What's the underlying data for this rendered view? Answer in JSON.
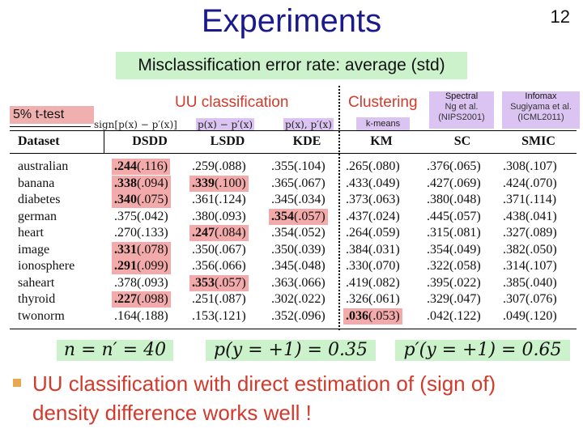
{
  "title": "Experiments",
  "page_number": "12",
  "subtitle": "Misclassification error rate: average (std)",
  "ttest_label": "5% t-test",
  "groups": {
    "uu": "UU classification",
    "clustering": "Clustering"
  },
  "method_notes": {
    "spectral": {
      "name": "Spectral",
      "line1": "Ng et al.",
      "line2": "(NIPS2001)"
    },
    "infomax": {
      "name": "Infomax",
      "line1": "Sugiyama et al.",
      "line2": "(ICML2011)"
    }
  },
  "formulas": {
    "dsdd": "sign[p(x) − p′(x)]",
    "lsdd": "p(x) − p′(x)",
    "kde": "p(x), p′(x)",
    "km": "k-means"
  },
  "table": {
    "headers": [
      "Dataset",
      "DSDD",
      "LSDD",
      "KDE",
      "KM",
      "SC",
      "SMIC"
    ],
    "rows": [
      {
        "dataset": "australian",
        "cells": [
          {
            "avg": ".244",
            "std": "(.116)",
            "hl": true
          },
          {
            "avg": ".259",
            "std": "(.088)",
            "hl": false
          },
          {
            "avg": ".355",
            "std": "(.104)",
            "hl": false
          },
          {
            "avg": ".265",
            "std": "(.080)",
            "hl": false
          },
          {
            "avg": ".376",
            "std": "(.065)",
            "hl": false
          },
          {
            "avg": ".308",
            "std": "(.107)",
            "hl": false
          }
        ]
      },
      {
        "dataset": "banana",
        "cells": [
          {
            "avg": ".338",
            "std": "(.094)",
            "hl": true
          },
          {
            "avg": ".339",
            "std": "(.100)",
            "hl": true
          },
          {
            "avg": ".365",
            "std": "(.067)",
            "hl": false
          },
          {
            "avg": ".433",
            "std": "(.049)",
            "hl": false
          },
          {
            "avg": ".427",
            "std": "(.069)",
            "hl": false
          },
          {
            "avg": ".424",
            "std": "(.070)",
            "hl": false
          }
        ]
      },
      {
        "dataset": "diabetes",
        "cells": [
          {
            "avg": ".340",
            "std": "(.075)",
            "hl": true
          },
          {
            "avg": ".361",
            "std": "(.124)",
            "hl": false
          },
          {
            "avg": ".345",
            "std": "(.034)",
            "hl": false
          },
          {
            "avg": ".373",
            "std": "(.063)",
            "hl": false
          },
          {
            "avg": ".380",
            "std": "(.048)",
            "hl": false
          },
          {
            "avg": ".371",
            "std": "(.114)",
            "hl": false
          }
        ]
      },
      {
        "dataset": "german",
        "cells": [
          {
            "avg": ".375",
            "std": "(.042)",
            "hl": false
          },
          {
            "avg": ".380",
            "std": "(.093)",
            "hl": false
          },
          {
            "avg": ".354",
            "std": "(.057)",
            "hl": true
          },
          {
            "avg": ".437",
            "std": "(.024)",
            "hl": false
          },
          {
            "avg": ".445",
            "std": "(.057)",
            "hl": false
          },
          {
            "avg": ".438",
            "std": "(.041)",
            "hl": false
          }
        ]
      },
      {
        "dataset": "heart",
        "cells": [
          {
            "avg": ".270",
            "std": "(.133)",
            "hl": false
          },
          {
            "avg": ".247",
            "std": "(.084)",
            "hl": true
          },
          {
            "avg": ".354",
            "std": "(.052)",
            "hl": false
          },
          {
            "avg": ".264",
            "std": "(.059)",
            "hl": false
          },
          {
            "avg": ".315",
            "std": "(.081)",
            "hl": false
          },
          {
            "avg": ".327",
            "std": "(.089)",
            "hl": false
          }
        ]
      },
      {
        "dataset": "image",
        "cells": [
          {
            "avg": ".331",
            "std": "(.078)",
            "hl": true
          },
          {
            "avg": ".350",
            "std": "(.067)",
            "hl": false
          },
          {
            "avg": ".350",
            "std": "(.039)",
            "hl": false
          },
          {
            "avg": ".384",
            "std": "(.031)",
            "hl": false
          },
          {
            "avg": ".354",
            "std": "(.049)",
            "hl": false
          },
          {
            "avg": ".382",
            "std": "(.050)",
            "hl": false
          }
        ]
      },
      {
        "dataset": "ionosphere",
        "cells": [
          {
            "avg": ".291",
            "std": "(.099)",
            "hl": true
          },
          {
            "avg": ".356",
            "std": "(.066)",
            "hl": false
          },
          {
            "avg": ".345",
            "std": "(.048)",
            "hl": false
          },
          {
            "avg": ".330",
            "std": "(.070)",
            "hl": false
          },
          {
            "avg": ".322",
            "std": "(.058)",
            "hl": false
          },
          {
            "avg": ".314",
            "std": "(.107)",
            "hl": false
          }
        ]
      },
      {
        "dataset": "saheart",
        "cells": [
          {
            "avg": ".378",
            "std": "(.093)",
            "hl": false
          },
          {
            "avg": ".353",
            "std": "(.057)",
            "hl": true
          },
          {
            "avg": ".363",
            "std": "(.066)",
            "hl": false
          },
          {
            "avg": ".419",
            "std": "(.082)",
            "hl": false
          },
          {
            "avg": ".395",
            "std": "(.022)",
            "hl": false
          },
          {
            "avg": ".385",
            "std": "(.040)",
            "hl": false
          }
        ]
      },
      {
        "dataset": "thyroid",
        "cells": [
          {
            "avg": ".227",
            "std": "(.098)",
            "hl": true
          },
          {
            "avg": ".251",
            "std": "(.087)",
            "hl": false
          },
          {
            "avg": ".302",
            "std": "(.022)",
            "hl": false
          },
          {
            "avg": ".326",
            "std": "(.061)",
            "hl": false
          },
          {
            "avg": ".329",
            "std": "(.047)",
            "hl": false
          },
          {
            "avg": ".307",
            "std": "(.076)",
            "hl": false
          }
        ]
      },
      {
        "dataset": "twonorm",
        "cells": [
          {
            "avg": ".164",
            "std": "(.188)",
            "hl": false
          },
          {
            "avg": ".153",
            "std": "(.121)",
            "hl": false
          },
          {
            "avg": ".352",
            "std": "(.096)",
            "hl": false
          },
          {
            "avg": ".036",
            "std": "(.053)",
            "hl": true
          },
          {
            "avg": ".042",
            "std": "(.122)",
            "hl": false
          },
          {
            "avg": ".049",
            "std": "(.120)",
            "hl": false
          }
        ]
      }
    ]
  },
  "params": [
    "n = n′ = 40",
    "p(y = +1) = 0.35",
    "p′(y = +1) = 0.65"
  ],
  "conclusion": "UU classification with direct estimation of (sign of) density difference works well !",
  "colors": {
    "title": "#1a1a8c",
    "accent_red": "#d33a2c",
    "highlight": "#f3aaaa",
    "green_box": "#ccf2cc",
    "purple_box": "#dcc4f2"
  }
}
